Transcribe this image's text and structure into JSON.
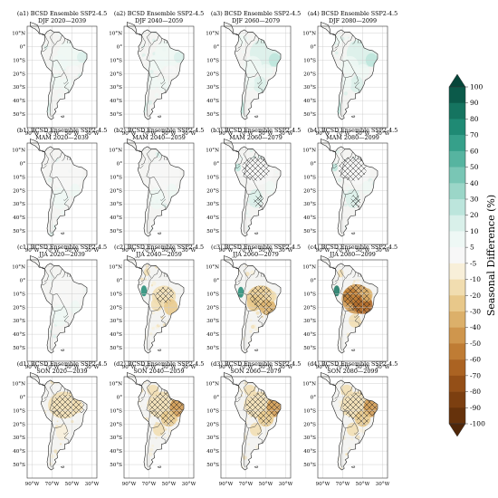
{
  "panels": [
    {
      "label": "(a1) BCSD Ensemble SSP2-4.5",
      "sub": "DJF 2020—2039",
      "style": "wet1"
    },
    {
      "label": "(a2) BCSD Ensemble SSP2-4.5",
      "sub": "DJF 2040—2059",
      "style": "wet1"
    },
    {
      "label": "(a3) BCSD Ensemble SSP2-4.5",
      "sub": "DJF 2060—2079",
      "style": "wet2"
    },
    {
      "label": "(a4) BCSD Ensemble SSP2-4.5",
      "sub": "DJF 2080—2099",
      "style": "wet2"
    },
    {
      "label": "(b1) BCSD Ensemble SSP2-4.5",
      "sub": "MAM 2020—2039",
      "style": "light"
    },
    {
      "label": "(b2) BCSD Ensemble SSP2-4.5",
      "sub": "MAM 2040—2059",
      "style": "light"
    },
    {
      "label": "(b3) BCSD Ensemble SSP2-4.5",
      "sub": "MAM 2060—2079",
      "style": "hatchN"
    },
    {
      "label": "(b4) BCSD Ensemble SSP2-4.5",
      "sub": "MAM 2080—2099",
      "style": "hatchN"
    },
    {
      "label": "(c1) BCSD Ensemble SSP2-4.5",
      "sub": "JJA 2020—2039",
      "style": "light"
    },
    {
      "label": "(c2) BCSD Ensemble SSP2-4.5",
      "sub": "JJA 2040—2059",
      "style": "dry1"
    },
    {
      "label": "(c3) BCSD Ensemble SSP2-4.5",
      "sub": "JJA 2060—2079",
      "style": "dry2"
    },
    {
      "label": "(c4) BCSD Ensemble SSP2-4.5",
      "sub": "JJA 2080—2099",
      "style": "dry3"
    },
    {
      "label": "(d1) BCSD Ensemble SSP2-4.5",
      "sub": "SON 2020—2039",
      "style": "dryN"
    },
    {
      "label": "(d2) BCSD Ensemble SSP2-4.5",
      "sub": "SON 2040—2059",
      "style": "dryE"
    },
    {
      "label": "(d3) BCSD Ensemble SSP2-4.5",
      "sub": "SON 2060—2079",
      "style": "dryE"
    },
    {
      "label": "(d4) BCSD Ensemble SSP2-4.5",
      "sub": "SON 2080—2099",
      "style": "dryE"
    }
  ],
  "lat_ticks": [
    "10°N",
    "0°",
    "10°S",
    "20°S",
    "30°S",
    "40°S",
    "50°S"
  ],
  "lon_ticks": [
    "90°W",
    "70°W",
    "50°W",
    "30°W"
  ],
  "colorbar": {
    "title": "Seasonal Difference (%)",
    "ticks": [
      "100",
      "90",
      "80",
      "70",
      "60",
      "50",
      "40",
      "30",
      "20",
      "10",
      "5",
      "-5",
      "-10",
      "-20",
      "-30",
      "-40",
      "-50",
      "-60",
      "-70",
      "-80",
      "-90",
      "-100"
    ],
    "colors": [
      "#0b5a4a",
      "#157460",
      "#1f8a74",
      "#36a08a",
      "#56b4a0",
      "#79c6b5",
      "#9bd6c8",
      "#bce5dc",
      "#d9f0ea",
      "#eef8f5",
      "#f7f7f7",
      "#f8efd9",
      "#f1ddb0",
      "#e8c88a",
      "#dcb06a",
      "#cf964d",
      "#bf7c34",
      "#ab6322",
      "#944f17",
      "#7c3f10",
      "#66320b"
    ]
  }
}
